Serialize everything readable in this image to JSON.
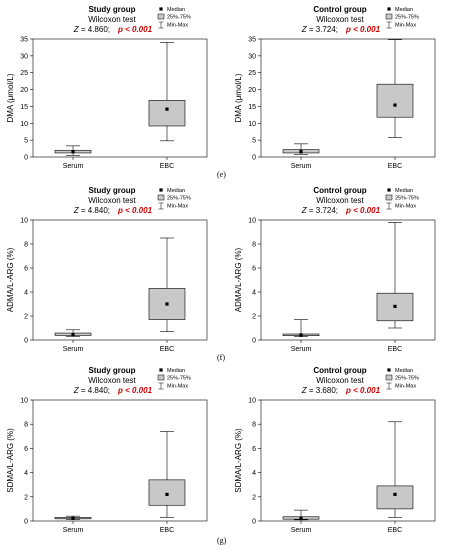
{
  "panel_labels": [
    "(e)",
    "(f)",
    "(g)"
  ],
  "legend": {
    "median": "Median",
    "iqr": "25%-75%",
    "range": "Min-Max"
  },
  "chart_data": [
    {
      "type": "boxplot",
      "title": "Study group",
      "test": "Wilcoxon test",
      "z_label": "Z",
      "z_value": " = 4.860;",
      "p_text": "p < 0.001",
      "ylabel": "DMA (μmol/L)",
      "ylim": [
        0,
        35
      ],
      "yticks": [
        0,
        5,
        10,
        15,
        20,
        25,
        30,
        35
      ],
      "categories": [
        "Serum",
        "EBC"
      ],
      "boxes": [
        {
          "min": 0.5,
          "q1": 1.2,
          "median": 1.6,
          "q3": 2.0,
          "max": 3.3
        },
        {
          "min": 4.8,
          "q1": 9.2,
          "median": 14.2,
          "q3": 16.8,
          "max": 34.0
        }
      ],
      "grid": false,
      "legend_position": "top-right"
    },
    {
      "type": "boxplot",
      "title": "Control group",
      "test": "Wilcoxon test",
      "z_label": "Z",
      "z_value": " = 3.724;",
      "p_text": "p < 0.001",
      "ylabel": "DMA (μmol/L)",
      "ylim": [
        0,
        35
      ],
      "yticks": [
        0,
        5,
        10,
        15,
        20,
        25,
        30,
        35
      ],
      "categories": [
        "Serum",
        "EBC"
      ],
      "boxes": [
        {
          "min": 0.8,
          "q1": 1.2,
          "median": 1.6,
          "q3": 2.2,
          "max": 3.9
        },
        {
          "min": 5.8,
          "q1": 11.8,
          "median": 15.4,
          "q3": 21.6,
          "max": 34.8
        }
      ],
      "grid": false,
      "legend_position": "top-right"
    },
    {
      "type": "boxplot",
      "title": "Study group",
      "test": "Wilcoxon test",
      "z_label": "Z",
      "z_value": " = 4.840;",
      "p_text": "p < 0.001",
      "ylabel": "ADMA/L-ARG (%)",
      "ylim": [
        0,
        10
      ],
      "yticks": [
        0,
        2,
        4,
        6,
        8,
        10
      ],
      "categories": [
        "Serum",
        "EBC"
      ],
      "boxes": [
        {
          "min": 0.3,
          "q1": 0.38,
          "median": 0.45,
          "q3": 0.58,
          "max": 0.85
        },
        {
          "min": 0.7,
          "q1": 1.7,
          "median": 3.0,
          "q3": 4.3,
          "max": 8.5
        }
      ],
      "grid": false,
      "legend_position": "top-right"
    },
    {
      "type": "boxplot",
      "title": "Control group",
      "test": "Wilcoxon test",
      "z_label": "Z",
      "z_value": " = 3.724;",
      "p_text": "p < 0.001",
      "ylabel": "ADMA/L-ARG (%)",
      "ylim": [
        0,
        10
      ],
      "yticks": [
        0,
        2,
        4,
        6,
        8,
        10
      ],
      "categories": [
        "Serum",
        "EBC"
      ],
      "boxes": [
        {
          "min": 0.28,
          "q1": 0.36,
          "median": 0.42,
          "q3": 0.5,
          "max": 1.7
        },
        {
          "min": 1.0,
          "q1": 1.6,
          "median": 2.8,
          "q3": 3.9,
          "max": 9.8
        }
      ],
      "grid": false,
      "legend_position": "top-right"
    },
    {
      "type": "boxplot",
      "title": "Study group",
      "test": "Wilcoxon test",
      "z_label": "Z",
      "z_value": " = 4.840;",
      "p_text": "p < 0.001",
      "ylabel": "SDMA/L-ARG (%)",
      "ylim": [
        0,
        10
      ],
      "yticks": [
        0,
        2,
        4,
        6,
        8,
        10
      ],
      "categories": [
        "Serum",
        "EBC"
      ],
      "boxes": [
        {
          "min": 0.12,
          "q1": 0.18,
          "median": 0.22,
          "q3": 0.3,
          "max": 0.4
        },
        {
          "min": 0.3,
          "q1": 1.3,
          "median": 2.2,
          "q3": 3.4,
          "max": 7.4
        }
      ],
      "grid": false,
      "legend_position": "top-right"
    },
    {
      "type": "boxplot",
      "title": "Control group",
      "test": "Wilcoxon test",
      "z_label": "Z",
      "z_value": " = 3.680;",
      "p_text": "p < 0.001",
      "ylabel": "SDMA/L-ARG (%)",
      "ylim": [
        0,
        10
      ],
      "yticks": [
        0,
        2,
        4,
        6,
        8,
        10
      ],
      "categories": [
        "Serum",
        "EBC"
      ],
      "boxes": [
        {
          "min": 0.1,
          "q1": 0.15,
          "median": 0.2,
          "q3": 0.35,
          "max": 0.9
        },
        {
          "min": 0.3,
          "q1": 1.0,
          "median": 2.2,
          "q3": 2.9,
          "max": 8.2
        }
      ],
      "grid": false,
      "legend_position": "top-right"
    }
  ],
  "colors": {
    "box_fill": "#c8c8c8",
    "p_value": "#cc0000",
    "axis": "#000000"
  }
}
